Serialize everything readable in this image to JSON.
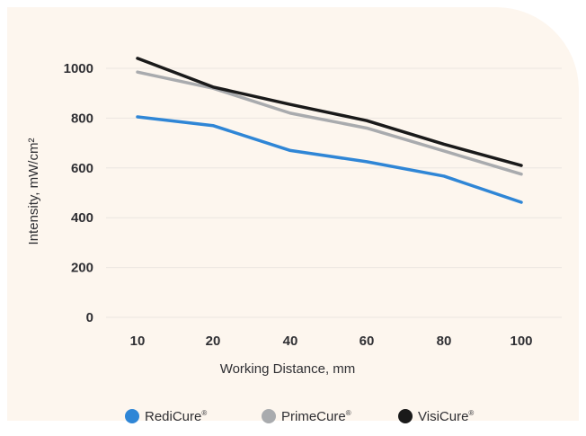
{
  "chart_data": {
    "type": "line",
    "categories": [
      "10",
      "20",
      "40",
      "60",
      "80",
      "100"
    ],
    "xlabel": "Working Distance, mm",
    "ylabel": "Intensity, mW/cm²",
    "ylim": [
      0,
      1000
    ],
    "yticks": [
      "0",
      "200",
      "400",
      "600",
      "800",
      "1000"
    ],
    "grid": true,
    "legend_position": "bottom",
    "series": [
      {
        "name": "RediCure",
        "mark": "®",
        "color": "#2f86d6",
        "values": [
          805,
          770,
          670,
          625,
          567,
          462
        ]
      },
      {
        "name": "PrimeCure",
        "mark": "®",
        "color": "#a9abae",
        "values": [
          985,
          920,
          820,
          760,
          668,
          575
        ]
      },
      {
        "name": "VisiCure",
        "mark": "®",
        "color": "#1a1a1a",
        "values": [
          1040,
          925,
          855,
          790,
          695,
          610
        ]
      }
    ]
  },
  "colors": {
    "panel_background": "#fdf6ee",
    "grid": "#ebe6e0",
    "text": "#2f2f33"
  }
}
